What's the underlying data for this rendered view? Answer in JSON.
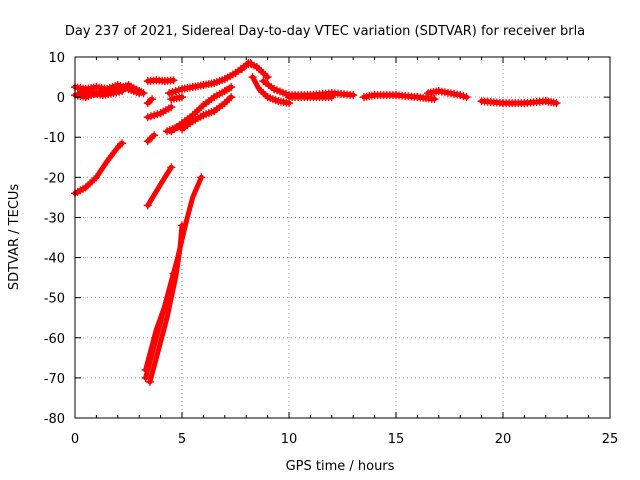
{
  "chart_data": {
    "type": "scatter",
    "title": "Day 237 of 2021, Sidereal Day-to-day VTEC variation (SDTVAR) for receiver brla",
    "xlabel": "GPS time / hours",
    "ylabel": "SDTVAR / TECUs",
    "xlim": [
      0,
      25
    ],
    "ylim": [
      -80,
      10
    ],
    "xticks": [
      "0",
      "5",
      "10",
      "15",
      "20",
      "25"
    ],
    "yticks": [
      "10",
      "0",
      "-10",
      "-20",
      "-30",
      "-40",
      "-50",
      "-60",
      "-70",
      "-80"
    ],
    "grid": true,
    "marker_color": "#ff0000",
    "series": [
      {
        "arcs": [
          [
            [
              0.0,
              2.5
            ],
            [
              0.5,
              2.0
            ],
            [
              1.0,
              2.5
            ],
            [
              1.5,
              2.0
            ],
            [
              2.0,
              3.0
            ],
            [
              2.5,
              2.0
            ],
            [
              3.0,
              1.0
            ]
          ],
          [
            [
              0.0,
              0.5
            ],
            [
              0.5,
              0.0
            ],
            [
              1.0,
              1.0
            ],
            [
              1.5,
              1.5
            ],
            [
              2.0,
              2.0
            ],
            [
              2.5,
              3.0
            ],
            [
              3.0,
              1.5
            ],
            [
              3.2,
              1.0
            ]
          ],
          [
            [
              0.2,
              1.0
            ],
            [
              0.8,
              1.0
            ],
            [
              1.3,
              0.5
            ],
            [
              1.8,
              1.0
            ],
            [
              2.2,
              1.5
            ]
          ],
          [
            [
              3.4,
              4.0
            ],
            [
              3.8,
              4.2
            ],
            [
              4.2,
              4.0
            ],
            [
              4.6,
              4.2
            ]
          ],
          [
            [
              3.4,
              -1.5
            ],
            [
              3.6,
              -0.5
            ]
          ],
          [
            [
              4.4,
              1.0
            ],
            [
              5.0,
              2.0
            ],
            [
              5.5,
              2.5
            ],
            [
              6.0,
              3.0
            ],
            [
              6.5,
              3.5
            ],
            [
              7.0,
              4.5
            ],
            [
              7.5,
              6.0
            ],
            [
              8.0,
              8.0
            ],
            [
              8.2,
              8.5
            ]
          ],
          [
            [
              4.5,
              -0.5
            ],
            [
              5.0,
              0.0
            ]
          ],
          [
            [
              7.8,
              7.0
            ],
            [
              8.1,
              8.5
            ],
            [
              8.5,
              7.5
            ],
            [
              9.0,
              5.0
            ]
          ],
          [
            [
              8.3,
              5.0
            ],
            [
              8.6,
              2.0
            ],
            [
              9.0,
              0.0
            ],
            [
              9.5,
              -1.0
            ],
            [
              10.0,
              -1.5
            ]
          ],
          [
            [
              8.8,
              4.0
            ],
            [
              9.3,
              2.0
            ],
            [
              10.0,
              0.5
            ],
            [
              11.0,
              0.5
            ],
            [
              12.0,
              1.0
            ],
            [
              13.0,
              0.5
            ]
          ],
          [
            [
              10.0,
              0.0
            ],
            [
              11.0,
              0.0
            ],
            [
              12.0,
              0.0
            ]
          ],
          [
            [
              13.5,
              0.0
            ],
            [
              14.0,
              0.5
            ],
            [
              15.0,
              0.5
            ],
            [
              16.0,
              0.0
            ],
            [
              16.8,
              -0.5
            ]
          ],
          [
            [
              16.5,
              1.0
            ],
            [
              17.0,
              1.5
            ],
            [
              18.0,
              0.5
            ],
            [
              18.3,
              0.0
            ]
          ],
          [
            [
              19.0,
              -1.0
            ],
            [
              20.0,
              -1.5
            ],
            [
              21.0,
              -1.5
            ],
            [
              22.0,
              -1.0
            ],
            [
              22.5,
              -1.5
            ]
          ],
          [
            [
              0.0,
              -24.0
            ],
            [
              0.5,
              -22.5
            ],
            [
              1.0,
              -20.0
            ],
            [
              1.5,
              -16.0
            ],
            [
              2.0,
              -12.5
            ],
            [
              2.2,
              -11.5
            ]
          ],
          [
            [
              3.4,
              -5.0
            ],
            [
              4.0,
              -4.0
            ],
            [
              4.5,
              -2.5
            ]
          ],
          [
            [
              4.5,
              -8.5
            ],
            [
              5.0,
              -6.5
            ],
            [
              5.5,
              -4.5
            ],
            [
              6.0,
              -2.0
            ],
            [
              6.5,
              0.0
            ],
            [
              7.0,
              1.5
            ],
            [
              7.3,
              2.5
            ]
          ],
          [
            [
              4.3,
              -8.5
            ],
            [
              4.8,
              -7.5
            ]
          ],
          [
            [
              5.0,
              -8.0
            ],
            [
              5.5,
              -6.0
            ],
            [
              6.0,
              -4.5
            ],
            [
              6.5,
              -3.5
            ],
            [
              7.0,
              -1.5
            ],
            [
              7.3,
              0.0
            ]
          ],
          [
            [
              3.4,
              -11.0
            ],
            [
              3.7,
              -9.5
            ]
          ],
          [
            [
              3.4,
              -27.0
            ],
            [
              3.8,
              -23.5
            ],
            [
              4.2,
              -20.0
            ],
            [
              4.5,
              -17.5
            ]
          ],
          [
            [
              3.3,
              -70.0
            ],
            [
              3.8,
              -60.0
            ],
            [
              4.3,
              -50.0
            ],
            [
              4.8,
              -40.0
            ],
            [
              5.2,
              -31.0
            ],
            [
              5.5,
              -25.0
            ],
            [
              5.9,
              -20.0
            ]
          ],
          [
            [
              3.5,
              -71.0
            ],
            [
              3.9,
              -63.0
            ],
            [
              4.3,
              -55.0
            ],
            [
              4.7,
              -45.0
            ],
            [
              4.9,
              -38.0
            ],
            [
              5.0,
              -32.0
            ]
          ],
          [
            [
              3.3,
              -68.0
            ],
            [
              3.8,
              -58.0
            ],
            [
              4.2,
              -52.0
            ],
            [
              4.6,
              -44.0
            ]
          ]
        ]
      }
    ]
  }
}
